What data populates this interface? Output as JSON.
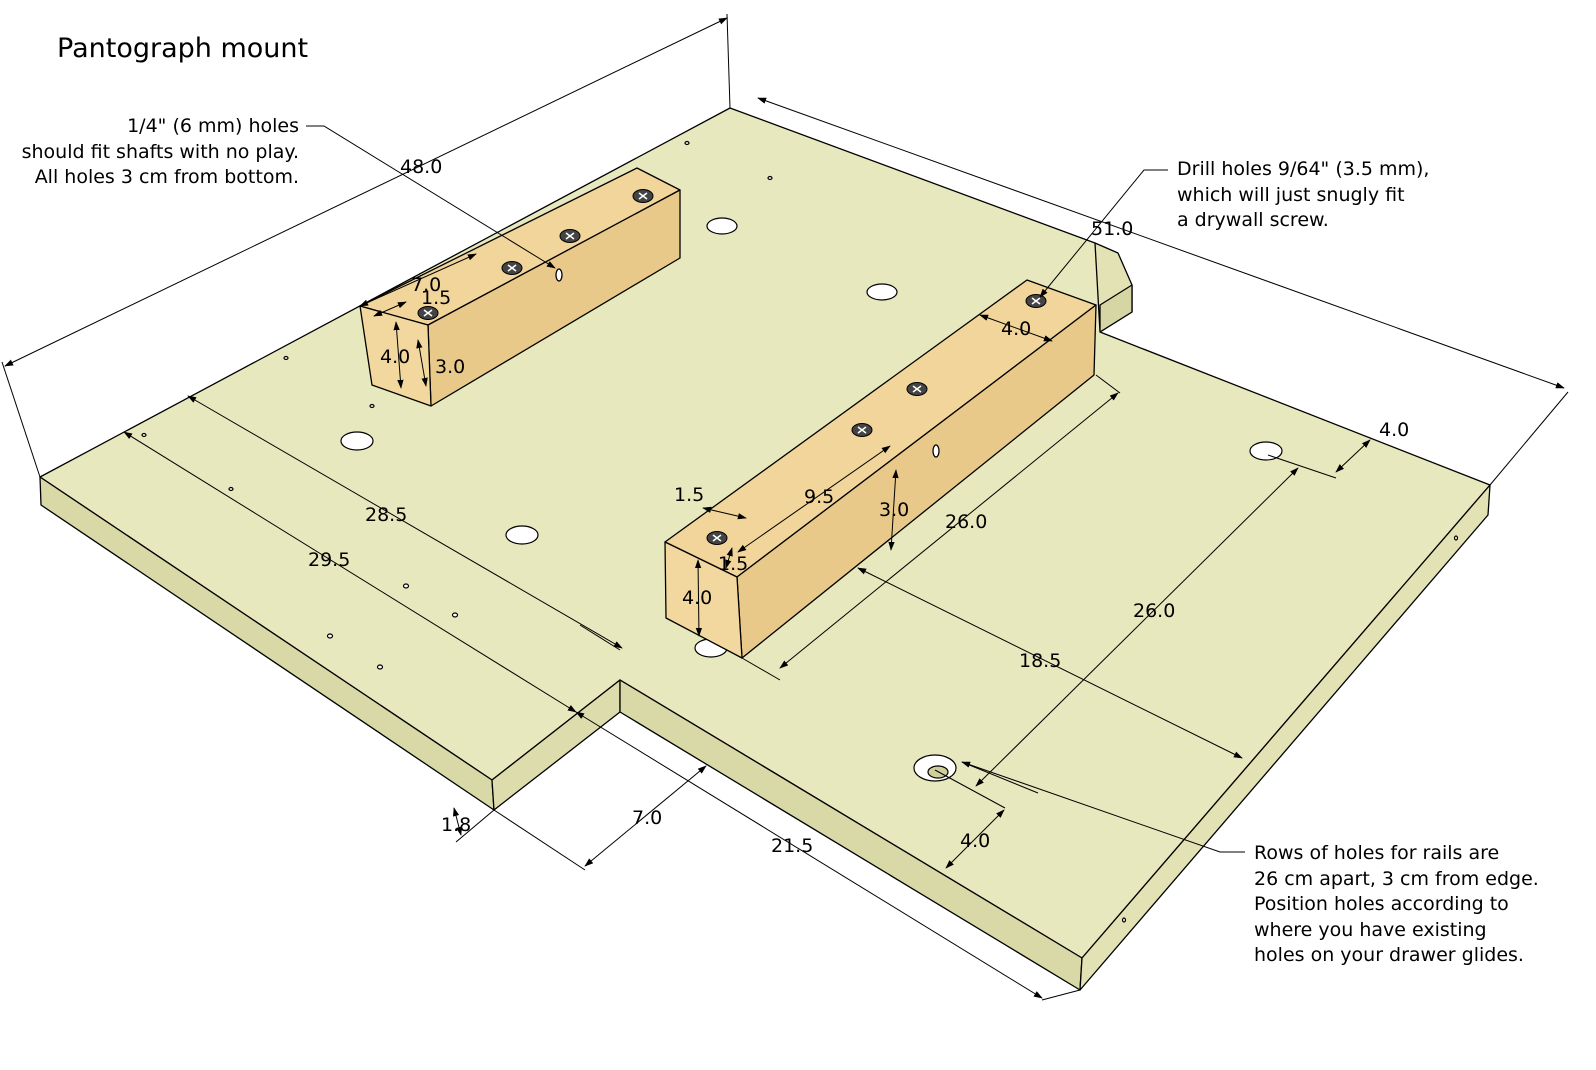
{
  "title": "Pantograph mount",
  "notes": {
    "shaft_holes": [
      "1/4\" (6 mm) holes",
      "should fit shafts with no play.",
      "All holes 3 cm from bottom."
    ],
    "drill_holes": [
      "Drill holes 9/64\" (3.5 mm),",
      "which will just snugly fit",
      "a drywall screw."
    ],
    "rail_holes": [
      "Rows of holes for rails are",
      "26 cm apart, 3 cm from edge.",
      "Position holes according to",
      "where you have existing",
      "holes on your drawer glides."
    ]
  },
  "dimensions": {
    "d_48": "48.0",
    "d_51": "51.0",
    "d_7_top": "7.0",
    "d_1_5_top": "1.5",
    "d_4_left_block": "4.0",
    "d_3_left_block": "3.0",
    "d_4_right_top": "4.0",
    "d_4_far_right": "4.0",
    "d_28_5": "28.5",
    "d_29_5": "29.5",
    "d_1_5_right_a": "1.5",
    "d_9_5": "9.5",
    "d_3_right_block": "3.0",
    "d_26_block": "26.0",
    "d_1_5_right_b": "1.5",
    "d_4_right_block": "4.0",
    "d_26_holes": "26.0",
    "d_18_5": "18.5",
    "d_1_8": "1.8",
    "d_7_notch": "7.0",
    "d_21_5": "21.5",
    "d_4_bottom": "4.0"
  },
  "colors": {
    "board_top": "#e8e8be",
    "board_front": "#d9d9a8",
    "board_side": "#e2e2b4",
    "block_top": "#f1d59a",
    "block_front": "#f2d89e",
    "block_side": "#e9c98a",
    "outline": "#000000"
  }
}
